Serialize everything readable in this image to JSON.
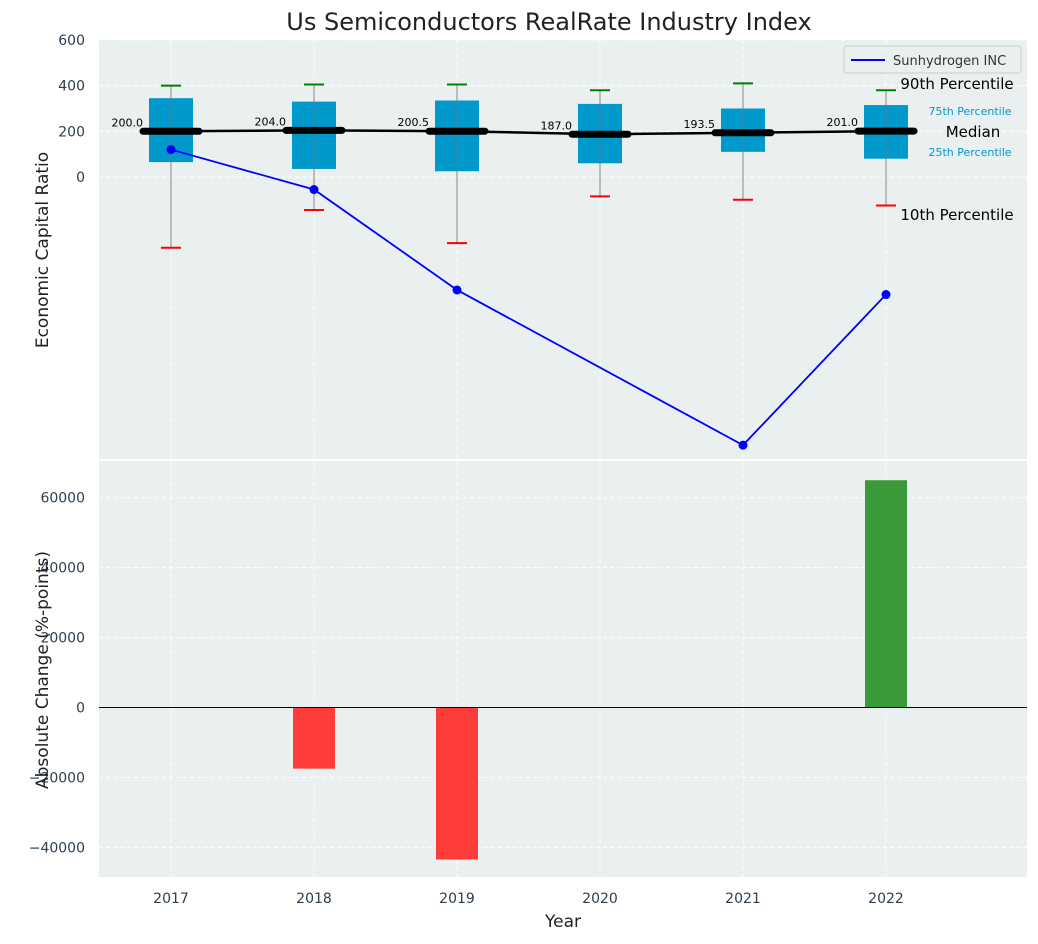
{
  "chart_data": [
    {
      "type": "box",
      "title": "Us Semiconductors RealRate Industry Index",
      "ylabel": "Economic Capital Ratio",
      "ylim": [
        -1240,
        600
      ],
      "yticks": [
        "600",
        "400",
        "200",
        "0"
      ],
      "ytick_values": [
        600,
        400,
        200,
        0
      ],
      "grid": true,
      "legend_position": "top-right",
      "categories": [
        "2017",
        "2018",
        "2019",
        "2020",
        "2021",
        "2022"
      ],
      "percentiles": {
        "p10": [
          -310,
          -145,
          -290,
          -85,
          -100,
          -125
        ],
        "p25": [
          65,
          35,
          25,
          60,
          110,
          80
        ],
        "median": [
          200,
          204,
          200.5,
          187,
          193.5,
          201
        ],
        "p75": [
          345,
          330,
          335,
          320,
          300,
          315
        ],
        "p90": [
          400,
          405,
          405,
          380,
          410,
          380
        ]
      },
      "median_labels": [
        "200.0",
        "204.0",
        "200.5",
        "187.0",
        "193.5",
        "201.0"
      ],
      "series": [
        {
          "name": "Sunhydrogen INC",
          "values": [
            120,
            -55,
            -495,
            null,
            -1175,
            -515
          ],
          "color": "#0000ff"
        }
      ],
      "annotations": {
        "p90": "90th Percentile",
        "p75": "75th Percentile",
        "median": "Median",
        "p25": "25th Percentile",
        "p10": "10th Percentile"
      },
      "colors": {
        "box": "#0099cc",
        "median_line": "#000000",
        "p90_cap": "#008000",
        "p10_cap": "#ff0000",
        "annotation_small": "#0099cc",
        "background": "#eaeff0"
      }
    },
    {
      "type": "bar",
      "ylabel": "Absolute Change (%-points)",
      "xlabel": "Year",
      "categories": [
        "2017",
        "2018",
        "2019",
        "2020",
        "2021",
        "2022"
      ],
      "values": [
        0,
        -17500,
        -43500,
        0,
        0,
        65000
      ],
      "ylim": [
        -48500,
        70500
      ],
      "yticks": [
        "60000",
        "40000",
        "20000",
        "0",
        "−20000",
        "−40000"
      ],
      "ytick_values": [
        60000,
        40000,
        20000,
        0,
        -20000,
        -40000
      ],
      "grid": true,
      "colors": {
        "positive": "#3a9a3a",
        "negative": "#ff3c3c"
      }
    }
  ]
}
